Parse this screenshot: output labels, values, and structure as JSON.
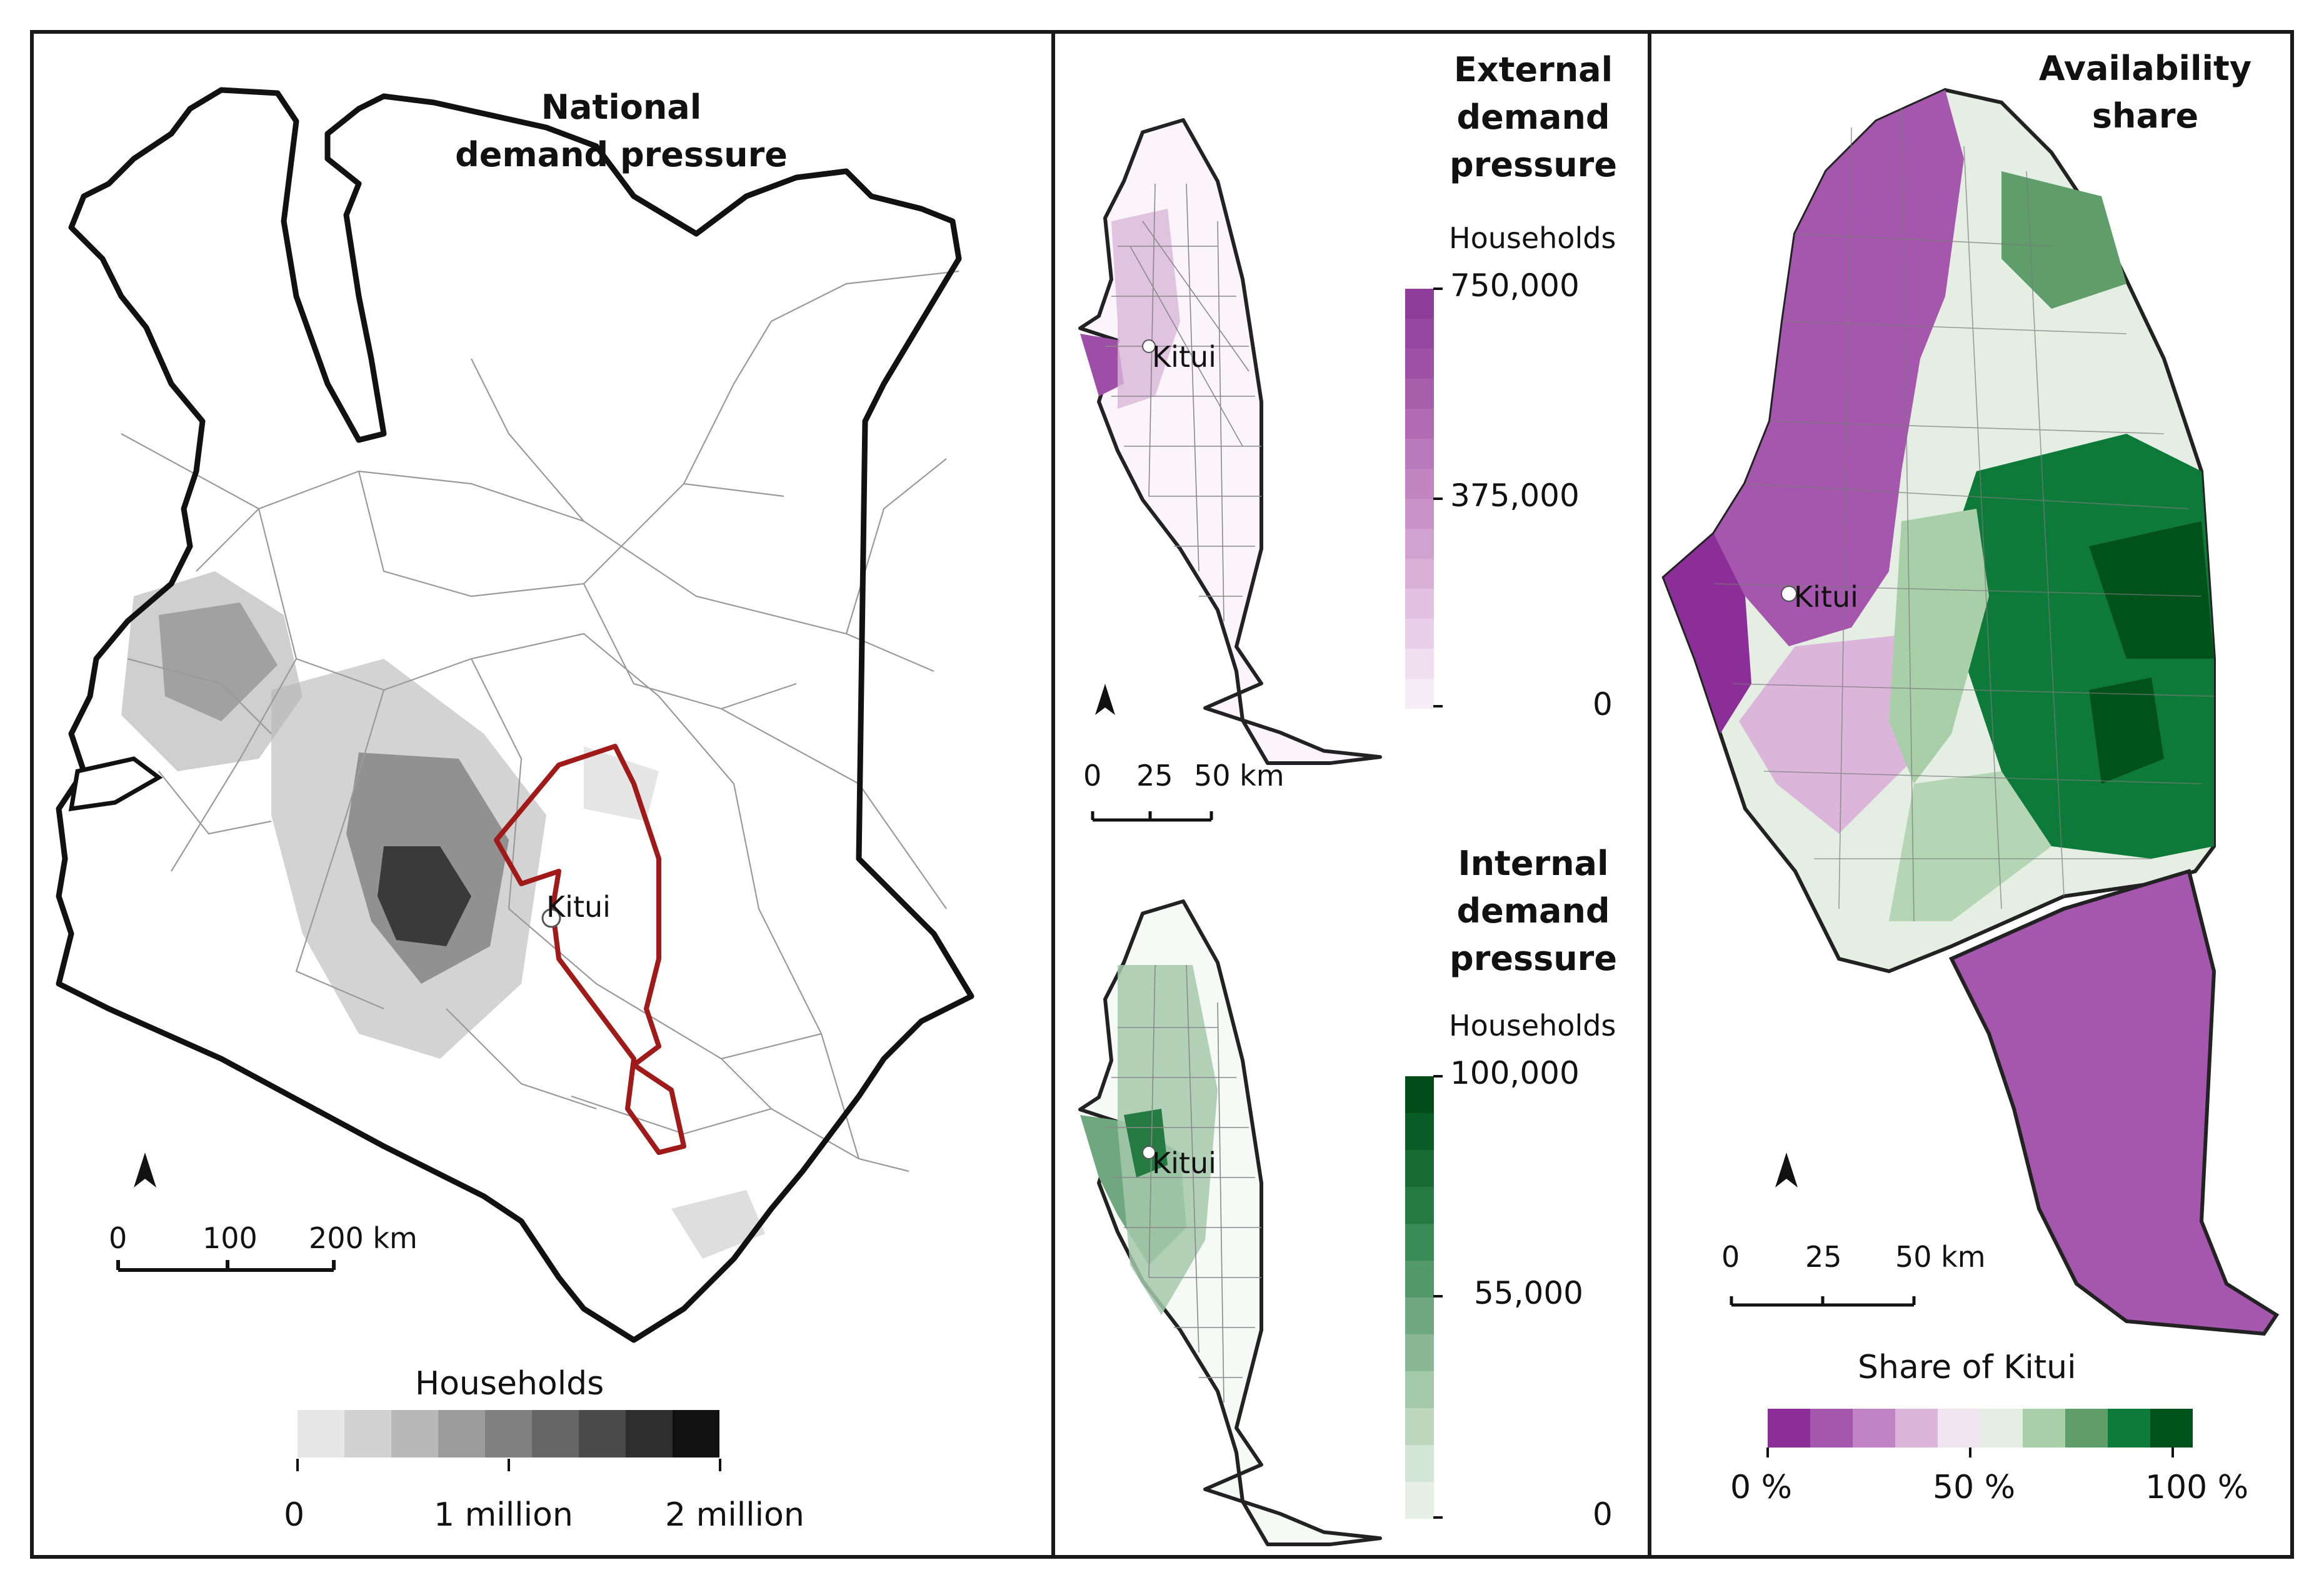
{
  "panels": {
    "national": {
      "title_line1": "National",
      "title_line2": "demand pressure",
      "place_label": "Kitui",
      "scale": {
        "labels": [
          "0",
          "100",
          "200 km"
        ]
      },
      "legend": {
        "title": "Households",
        "labels": [
          "0",
          "1 million",
          "2 million"
        ],
        "colors": [
          "#e6e6e6",
          "#d2d2d2",
          "#b8b8b8",
          "#9c9c9c",
          "#808080",
          "#666666",
          "#4a4a4a",
          "#2e2e2e",
          "#111111"
        ]
      }
    },
    "external": {
      "title_line1": "External",
      "title_line2": "demand",
      "title_line3": "pressure",
      "place_label": "Kitui",
      "scale": {
        "labels": [
          "0",
          "25",
          "50 km"
        ]
      },
      "legend": {
        "title": "Households",
        "labels": [
          "750,000",
          "375,000",
          "0"
        ],
        "colors": [
          "#8e3d9b",
          "#96479f",
          "#9e52a5",
          "#a75eab",
          "#b06bb2",
          "#b978b9",
          "#c186c1",
          "#c993c8",
          "#d1a2d0",
          "#d9b1d8",
          "#e1c0e0",
          "#e9cfe8",
          "#f0dff0",
          "#f6ecf6"
        ]
      }
    },
    "internal": {
      "title_line1": "Internal",
      "title_line2": "demand",
      "title_line3": "pressure",
      "place_label": "Kitui",
      "legend": {
        "title": "Households",
        "labels": [
          "100,000",
          "55,000",
          "0"
        ],
        "colors": [
          "#004d1a",
          "#0a5c26",
          "#176b33",
          "#257a41",
          "#3a8a55",
          "#54996a",
          "#6fa87f",
          "#8ab894",
          "#a4c8aa",
          "#bdd7bf",
          "#d3e5d4",
          "#e6f0e6"
        ]
      }
    },
    "availability": {
      "title_line1": "Availability",
      "title_line2": "share",
      "place_label": "Kitui",
      "scale": {
        "labels": [
          "0",
          "25",
          "50 km"
        ]
      },
      "legend": {
        "title": "Share of Kitui",
        "labels": [
          "0 %",
          "50 %",
          "100 %"
        ],
        "colors": [
          "#8b2e98",
          "#a557ae",
          "#c083c4",
          "#dbb6da",
          "#f0e5ef",
          "#e4eee3",
          "#a9cfa9",
          "#5f9d6a",
          "#0e7a3a",
          "#00511a"
        ]
      }
    }
  }
}
